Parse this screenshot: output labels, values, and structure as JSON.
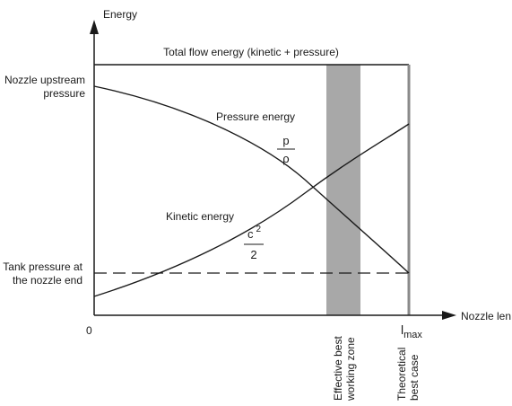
{
  "axes": {
    "y_label": "Energy",
    "x_label": "Nozzle len",
    "origin_label": "0",
    "lmax_main": "l",
    "lmax_sub": "max"
  },
  "top": {
    "total_label": "Total flow energy (kinetic + pressure)"
  },
  "left_labels": {
    "upstream_line1": "Nozzle upstream",
    "upstream_line2": "pressure",
    "tank_line1": "Tank pressure at",
    "tank_line2": "the nozzle end"
  },
  "curves": {
    "pressure_label": "Pressure energy",
    "pressure_num": "p",
    "pressure_den": "ρ",
    "kinetic_label": "Kinetic energy",
    "kinetic_num": "c",
    "kinetic_exp": "2",
    "kinetic_den": "2"
  },
  "bottom_labels": {
    "effective_line1": "Effective best",
    "effective_line2": "working zone",
    "theoretical_line1": "Theoretical",
    "theoretical_line2": "best case"
  },
  "colors": {
    "zone_fill": "#a8a8a8",
    "line": "#1a1a1a",
    "theoretical_line": "#8a8a8a"
  }
}
